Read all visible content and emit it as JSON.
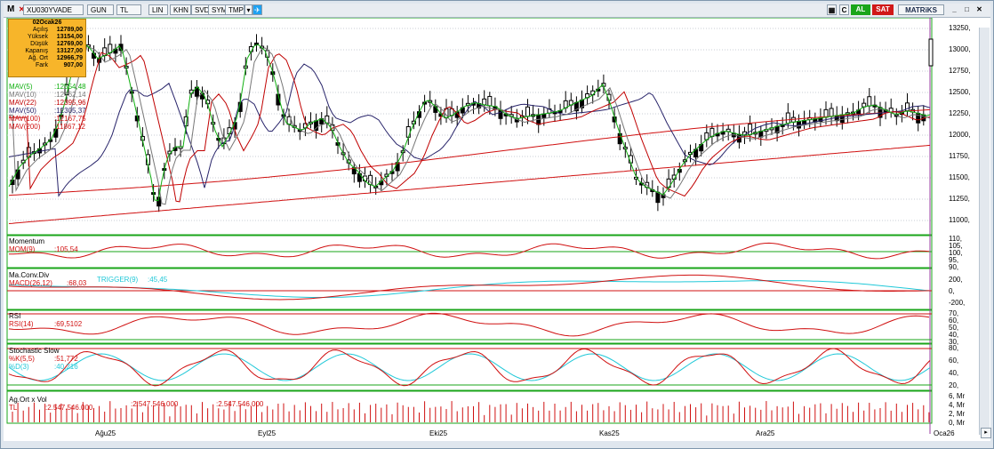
{
  "toolbar": {
    "buttons": [
      "M",
      "XU030YVADE",
      "GUN",
      "TL",
      "LIN",
      "KHN",
      "SVD",
      "SYM",
      "TMP"
    ],
    "right": {
      "c": "C",
      "al": "AL",
      "sat": "SAT",
      "matriks": "MATRiKS"
    },
    "colors": {
      "al": "#1aa51a",
      "sat": "#d01818"
    }
  },
  "info": {
    "date": "02Ocak26",
    "rows": [
      {
        "label": "Açılış",
        "value": "12789,00"
      },
      {
        "label": "Yüksek",
        "value": "13154,00"
      },
      {
        "label": "Düşük",
        "value": "12769,00"
      },
      {
        "label": "Kapanış",
        "value": "13127,00"
      },
      {
        "label": "Ağ. Ort",
        "value": "12966,79"
      },
      {
        "label": "Fark",
        "value": "907,00"
      }
    ]
  },
  "chart_data": [
    {
      "type": "candlestick",
      "ylim": [
        10900,
        13300
      ],
      "yticks": [
        "13250,",
        "13000,",
        "12750,",
        "12500,",
        "12250,",
        "12000,",
        "11750,",
        "11500,",
        "11250,",
        "11000,"
      ],
      "legend": [
        {
          "label": "MAV(5)",
          "value": ":12554,48",
          "color": "#10b010"
        },
        {
          "label": "MAV(10)",
          "value": ":12462,14",
          "color": "#777777"
        },
        {
          "label": "MAV(22)",
          "value": ":12395,96",
          "color": "#c00000"
        },
        {
          "label": "MAV(50)",
          "value": ":12305,37",
          "color": "#28246a"
        },
        {
          "label": "MAV(100)",
          "value": ":12167,75",
          "color": "#d01010"
        },
        {
          "label": "MAV(200)",
          "value": ":11867,12",
          "color": "#d01010"
        }
      ]
    },
    {
      "type": "line",
      "title": "Momentum",
      "legend": [
        {
          "label": "MOM(9)",
          "value": ":105,54",
          "color": "#d01010"
        }
      ],
      "yticks": [
        "110,",
        "105,",
        "100,",
        "95,",
        "90,"
      ]
    },
    {
      "type": "line",
      "title": "Ma.Conv.Div",
      "legend": [
        {
          "label": "MACD(26,12)",
          "value": ":68,03",
          "color": "#d01010"
        },
        {
          "label": "TRIGGER(9)",
          "value": ":45,45",
          "color": "#20c8d8"
        }
      ],
      "yticks": [
        "200,",
        "0,",
        "-200,"
      ]
    },
    {
      "type": "line",
      "title": "RSI",
      "legend": [
        {
          "label": "RSI(14)",
          "value": ":69,5102",
          "color": "#d01010"
        }
      ],
      "yticks": [
        "70,",
        "60,",
        "50,",
        "40,",
        "30,"
      ]
    },
    {
      "type": "line",
      "title": "Stochastic Slow",
      "legend": [
        {
          "label": "%K(5,5)",
          "value": ":51,772",
          "color": "#d01010"
        },
        {
          "label": "%D(3)",
          "value": ":40,216",
          "color": "#20c8d8"
        }
      ],
      "yticks": [
        "80,",
        "60,",
        "40,",
        "20,"
      ]
    },
    {
      "type": "bar",
      "title": "Ag.Ort x Vol",
      "legend": [
        {
          "label": "TL",
          "value": ":2.547.546.000",
          "color": "#d01010"
        }
      ],
      "repeat": [
        ":2.547.546.000",
        ":2.547.546.000"
      ],
      "yticks": [
        "6, Mr",
        "4, Mr",
        "2, Mr",
        "0, Mr"
      ]
    }
  ],
  "xaxis": [
    "Ağu25",
    "Eyl25",
    "Eki25",
    "Kas25",
    "Ara25",
    "Oca26"
  ]
}
